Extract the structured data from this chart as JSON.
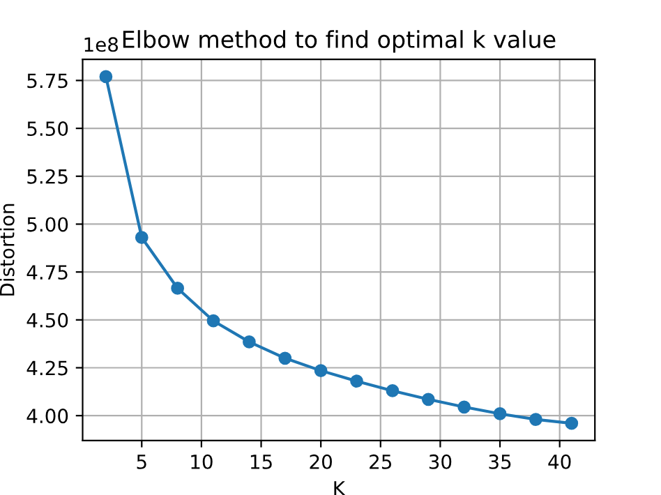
{
  "chart_data": {
    "type": "line",
    "title": "Elbow method to find optimal k value",
    "xlabel": "K",
    "ylabel": "Distortion",
    "annotations": [
      "1e8"
    ],
    "x": [
      2,
      5,
      8,
      11,
      14,
      17,
      20,
      23,
      26,
      29,
      32,
      35,
      38,
      41
    ],
    "series": [
      {
        "color": "#1f77b4",
        "values": [
          5.77,
          4.93,
          4.665,
          4.495,
          4.385,
          4.3,
          4.235,
          4.18,
          4.13,
          4.085,
          4.045,
          4.01,
          3.98,
          3.96
        ]
      }
    ],
    "xlim": [
      0.05,
      42.95
    ],
    "ylim": [
      3.87,
      5.86
    ],
    "xticks": [
      5,
      10,
      15,
      20,
      25,
      30,
      35,
      40
    ],
    "yticks": [
      {
        "value": 4,
        "label": "4.00"
      },
      4.25,
      {
        "value": 4.5,
        "label": "4.50"
      },
      4.75,
      {
        "value": 5,
        "label": "5.00"
      },
      5.25,
      {
        "value": 5.5,
        "label": "5.50"
      },
      5.75
    ],
    "grid": true,
    "marker": "circle",
    "line_style": "solid"
  }
}
